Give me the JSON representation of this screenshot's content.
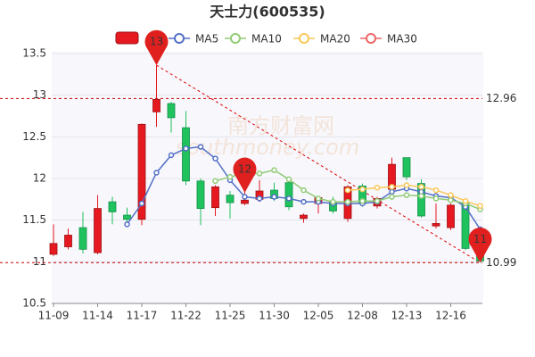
{
  "chart_data": {
    "type": "candlestick",
    "title": "天士力(600535)",
    "categories": [
      "11-09",
      null,
      null,
      "11-14",
      null,
      null,
      "11-17",
      null,
      null,
      "11-22",
      null,
      null,
      "11-25",
      null,
      null,
      "11-30",
      null,
      null,
      "12-05",
      null,
      null,
      "12-08",
      null,
      null,
      "12-13",
      null,
      null,
      "12-16",
      null,
      null
    ],
    "open": [
      11.09,
      11.18,
      11.41,
      11.11,
      11.72,
      11.56,
      11.51,
      12.8,
      12.9,
      12.61,
      11.97,
      11.65,
      11.8,
      11.7,
      11.75,
      11.86,
      11.95,
      11.52,
      11.7,
      11.72,
      11.52,
      11.91,
      11.67,
      11.87,
      12.25,
      11.94,
      11.43,
      11.41,
      11.7,
      11.3
    ],
    "high": [
      11.45,
      11.4,
      11.6,
      11.8,
      11.78,
      11.65,
      12.66,
      13.36,
      12.92,
      12.81,
      12.0,
      11.92,
      11.85,
      11.88,
      11.98,
      11.95,
      11.98,
      11.58,
      11.78,
      11.78,
      11.92,
      11.94,
      11.78,
      12.25,
      12.25,
      11.99,
      11.7,
      11.7,
      11.72,
      11.35
    ],
    "low": [
      11.07,
      11.15,
      11.1,
      11.09,
      11.45,
      11.45,
      11.44,
      12.62,
      12.55,
      11.92,
      11.44,
      11.55,
      11.52,
      11.68,
      11.72,
      11.73,
      11.62,
      11.47,
      11.58,
      11.58,
      11.48,
      11.66,
      11.64,
      11.84,
      11.98,
      11.53,
      11.4,
      11.38,
      11.14,
      10.99
    ],
    "close": [
      11.22,
      11.32,
      11.15,
      11.64,
      11.6,
      11.51,
      12.65,
      12.95,
      12.73,
      11.97,
      11.64,
      11.9,
      11.71,
      11.74,
      11.85,
      11.76,
      11.66,
      11.56,
      11.77,
      11.61,
      11.9,
      11.7,
      11.76,
      12.17,
      12.02,
      11.55,
      11.46,
      11.68,
      11.16,
      11.01
    ],
    "up_color": "#e5191f",
    "down_color": "#1fc25d",
    "series": [
      {
        "name": "MA5",
        "color": "#5470c6",
        "values": [
          null,
          null,
          null,
          null,
          null,
          11.45,
          11.7,
          12.07,
          12.28,
          12.36,
          12.38,
          12.24,
          11.98,
          11.78,
          11.76,
          11.78,
          11.76,
          11.72,
          11.72,
          11.7,
          11.7,
          11.7,
          11.72,
          11.84,
          11.88,
          11.84,
          11.79,
          11.77,
          11.66,
          11.39
        ]
      },
      {
        "name": "MA10",
        "color": "#91cc75",
        "values": [
          null,
          null,
          null,
          null,
          null,
          null,
          null,
          null,
          null,
          null,
          null,
          11.97,
          12.02,
          12.06,
          12.06,
          12.1,
          11.99,
          11.86,
          11.76,
          11.72,
          11.72,
          11.73,
          11.73,
          11.78,
          11.8,
          11.79,
          11.76,
          11.74,
          11.7,
          11.63
        ]
      },
      {
        "name": "MA20",
        "color": "#fac858",
        "values": [
          null,
          null,
          null,
          null,
          null,
          null,
          null,
          null,
          null,
          null,
          null,
          null,
          null,
          null,
          null,
          null,
          null,
          null,
          null,
          null,
          11.86,
          11.87,
          11.89,
          11.9,
          11.92,
          11.9,
          11.86,
          11.8,
          11.73,
          11.67
        ]
      },
      {
        "name": "MA30",
        "color": "#ee6666",
        "values": [
          null,
          null,
          null,
          null,
          null,
          null,
          null,
          null,
          null,
          null,
          null,
          null,
          null,
          null,
          null,
          null,
          null,
          null,
          null,
          null,
          null,
          null,
          null,
          null,
          null,
          null,
          null,
          null,
          null,
          null
        ]
      }
    ],
    "ylim": [
      10.5,
      13.5
    ],
    "yticks": [
      10.5,
      11,
      11.5,
      12,
      12.5,
      13,
      13.5
    ],
    "grid": true,
    "hlines": [
      12.96,
      10.99
    ],
    "trendline": {
      "from_index": 7,
      "from_value": 13.36,
      "to_index": 29,
      "to_value": 10.99
    },
    "pins": [
      {
        "label": "13",
        "index": 7,
        "value": 13.36
      },
      {
        "label": "12",
        "index": 13,
        "value": 11.83
      },
      {
        "label": "11",
        "index": 29,
        "value": 10.99
      }
    ],
    "watermark": "南方财富网",
    "watermark_sub": "southmoney.com"
  }
}
